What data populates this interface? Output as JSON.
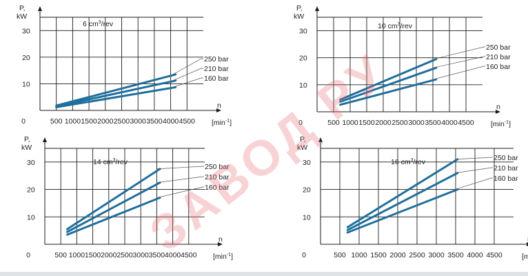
{
  "watermark": "ЗАВОД РУ",
  "chart_data": [
    {
      "type": "line",
      "title": "6 cm³/rev",
      "title_base": "6 cm",
      "title_sup": "3",
      "title_unit": "/rev",
      "ylabel": "P,",
      "ylabel_unit": "kW",
      "xlabel": "n",
      "xunit_base": "[min",
      "xunit_sup": "-1",
      "xunit_close": "]",
      "xlim": [
        0,
        5000
      ],
      "ylim": [
        0,
        35
      ],
      "xticks": [
        0,
        500,
        1000,
        1500,
        2000,
        2500,
        3000,
        3500,
        4000,
        4500
      ],
      "yticks": [
        10,
        20,
        30
      ],
      "series": [
        {
          "name": "250 bar",
          "x": [
            500,
            4150
          ],
          "y": [
            1.8,
            13.5
          ]
        },
        {
          "name": "210 bar",
          "x": [
            500,
            4150
          ],
          "y": [
            1.5,
            11.2
          ]
        },
        {
          "name": "160 bar",
          "x": [
            500,
            4150
          ],
          "y": [
            1.2,
            8.7
          ]
        }
      ]
    },
    {
      "type": "line",
      "title": "10 cm³/rev",
      "title_base": "10 cm",
      "title_sup": "3",
      "title_unit": "/rev",
      "ylabel": "P,",
      "ylabel_unit": "kW",
      "xlabel": "n",
      "xunit_base": "[min",
      "xunit_sup": "-1",
      "xunit_close": "]",
      "xlim": [
        0,
        5000
      ],
      "ylim": [
        0,
        35
      ],
      "xticks": [
        0,
        500,
        1000,
        1500,
        2000,
        2500,
        3000,
        3500,
        4000,
        4500
      ],
      "yticks": [
        10,
        20,
        30
      ],
      "series": [
        {
          "name": "250 bar",
          "x": [
            700,
            3600
          ],
          "y": [
            4.5,
            19.5
          ]
        },
        {
          "name": "210 bar",
          "x": [
            700,
            3600
          ],
          "y": [
            3.7,
            16.3
          ]
        },
        {
          "name": "160 bar",
          "x": [
            700,
            3600
          ],
          "y": [
            2.6,
            12.0
          ]
        }
      ]
    },
    {
      "type": "line",
      "title": "14 cm³/rev",
      "title_base": "14 cm",
      "title_sup": "3",
      "title_unit": "/rev",
      "ylabel": "P,",
      "ylabel_unit": "kW",
      "xlabel": "n",
      "xunit_base": "[min",
      "xunit_sup": "-1",
      "xunit_close": "]",
      "xlim": [
        0,
        5000
      ],
      "ylim": [
        0,
        35
      ],
      "xticks": [
        0,
        500,
        1000,
        1500,
        2000,
        2500,
        3000,
        3500,
        4000,
        4500
      ],
      "yticks": [
        10,
        20,
        30
      ],
      "series": [
        {
          "name": "250 bar",
          "x": [
            700,
            3600
          ],
          "y": [
            5.5,
            27.5
          ]
        },
        {
          "name": "210 bar",
          "x": [
            700,
            3600
          ],
          "y": [
            4.5,
            22.5
          ]
        },
        {
          "name": "160 bar",
          "x": [
            700,
            3600
          ],
          "y": [
            3.5,
            17.0
          ]
        }
      ]
    },
    {
      "type": "line",
      "title": "16 cm³/rev",
      "title_base": "16 cm",
      "title_sup": "3",
      "title_unit": "/rev",
      "ylabel": "P,",
      "ylabel_unit": "kW",
      "xlabel": "n",
      "xunit_base": "[min",
      "xunit_sup": "-1",
      "xunit_close": "]",
      "xlim": [
        0,
        5000
      ],
      "ylim": [
        0,
        35
      ],
      "xticks": [
        0,
        500,
        1000,
        1500,
        2000,
        2500,
        3000,
        3500,
        4000,
        4500
      ],
      "yticks": [
        10,
        20,
        30
      ],
      "series": [
        {
          "name": "250 bar",
          "x": [
            700,
            3550
          ],
          "y": [
            6.2,
            31.0
          ]
        },
        {
          "name": "210 bar",
          "x": [
            700,
            3550
          ],
          "y": [
            5.2,
            26.0
          ]
        },
        {
          "name": "160 bar",
          "x": [
            700,
            3550
          ],
          "y": [
            4.3,
            20.0
          ]
        }
      ]
    }
  ]
}
